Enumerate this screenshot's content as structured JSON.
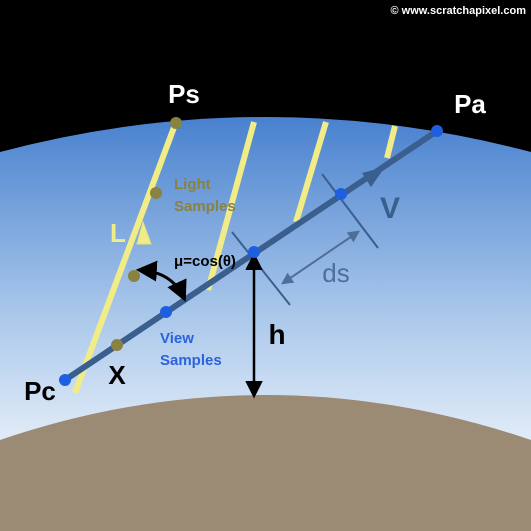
{
  "copyright": "© www.scratchapixel.com",
  "labels": {
    "ps": "Ps",
    "pa": "Pa",
    "pc": "Pc",
    "x": "X",
    "l": "L",
    "v": "V",
    "h": "h",
    "ds": "ds",
    "mu": "μ=cos(θ)",
    "light_line1": "Light",
    "light_line2": "Samples",
    "view_line1": "View",
    "view_line2": "Samples"
  },
  "colors": {
    "space": "#000000",
    "sky_top": "#4f86d0",
    "sky_bottom": "#e3eef8",
    "ground": "#9b8a74",
    "light_ray": "#f1ec86",
    "view_ray": "#3a5f8e",
    "view_sample": "#1e5fe0",
    "light_sample": "#8a8240",
    "light_label": "#8a8240",
    "view_label": "#2b63dc",
    "ds_label": "#4d6f9a",
    "v_label": "#3a5f8e"
  }
}
